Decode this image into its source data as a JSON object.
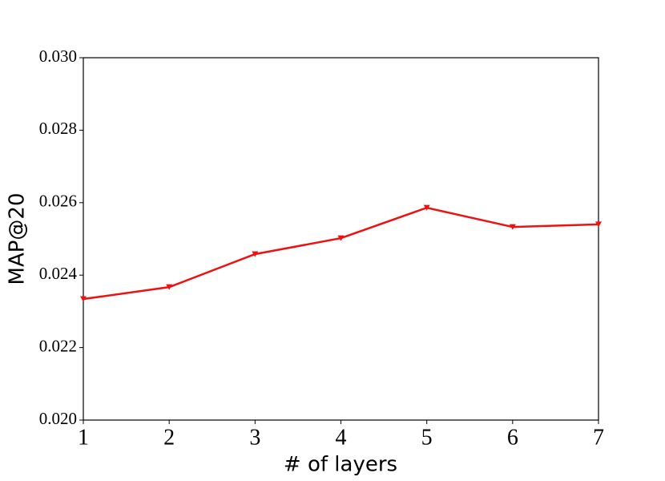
{
  "chart_data": {
    "type": "line",
    "x_label": "# of layers",
    "y_label": "MAP@20",
    "x": [
      1,
      2,
      3,
      4,
      5,
      6,
      7
    ],
    "series": [
      {
        "color": "#ee1111",
        "marker": "triangle-down",
        "values": [
          0.02334,
          0.02367,
          0.02458,
          0.02502,
          0.02586,
          0.02533,
          0.0254
        ]
      }
    ],
    "xlim": [
      1,
      7
    ],
    "xticks": [
      1,
      2,
      3,
      4,
      5,
      6,
      7
    ],
    "ylim": [
      0.02,
      0.03
    ],
    "yticks": [
      {
        "value": 0.02,
        "label": "0.020"
      },
      {
        "value": 0.022,
        "label": "0.022"
      },
      {
        "value": 0.024,
        "label": "0.024"
      },
      {
        "value": 0.026,
        "label": "0.026"
      },
      {
        "value": 0.028,
        "label": "0.028"
      },
      {
        "value": 0.03,
        "label": "0.030"
      }
    ],
    "grid": false
  }
}
